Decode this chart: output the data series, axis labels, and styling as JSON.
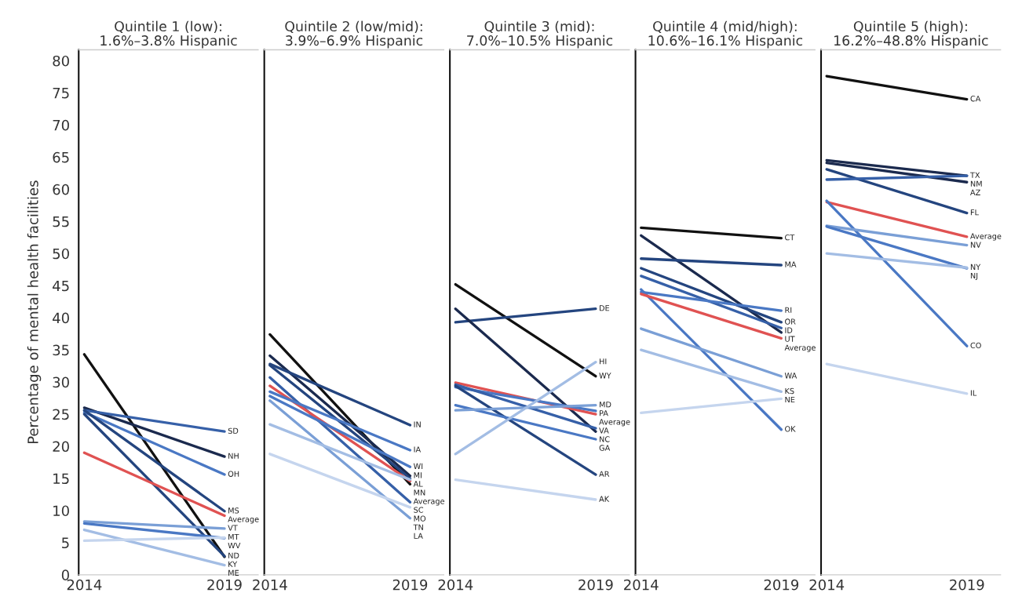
{
  "chart_data": [
    {
      "type": "line",
      "title": "Quintile 1 (low):\n1.6%–3.8% Hispanic",
      "ylabel": "Percentage of mental health facilities",
      "categories": [
        "2014",
        "2019"
      ],
      "ylim": [
        0,
        81.7
      ],
      "yticks": [
        0,
        5,
        10,
        15,
        20,
        25,
        30,
        35,
        40,
        45,
        50,
        55,
        60,
        65,
        70,
        75,
        80
      ],
      "series": [
        {
          "name": "KY",
          "color": "#111111",
          "values": [
            34.3,
            2.8
          ]
        },
        {
          "name": "NH",
          "color": "#1b2a4e",
          "values": [
            26.0,
            18.4
          ]
        },
        {
          "name": "SD",
          "color": "#3660a8",
          "values": [
            25.6,
            22.3
          ]
        },
        {
          "name": "OH",
          "color": "#4a78c4",
          "values": [
            25.3,
            15.6
          ]
        },
        {
          "name": "MS",
          "color": "#24457f",
          "values": [
            25.6,
            9.9
          ]
        },
        {
          "name": "ND",
          "color": "#24457f",
          "values": [
            25.0,
            2.9
          ]
        },
        {
          "name": "Average",
          "color": "#e05252",
          "values": [
            19.0,
            9.2
          ]
        },
        {
          "name": "VT",
          "color": "#7a9fd6",
          "values": [
            8.3,
            7.2
          ]
        },
        {
          "name": "WV",
          "color": "#4a78c4",
          "values": [
            8.0,
            5.7
          ]
        },
        {
          "name": "ME",
          "color": "#a3bde4",
          "values": [
            7.0,
            1.5
          ]
        },
        {
          "name": "MT",
          "color": "#c5d5ee",
          "values": [
            5.3,
            5.8
          ]
        }
      ]
    },
    {
      "type": "line",
      "title": "Quintile 2 (low/mid):\n3.9%–6.9% Hispanic",
      "categories": [
        "2014",
        "2019"
      ],
      "ylim": [
        0,
        81.7
      ],
      "tick_labels": "x",
      "series": [
        {
          "name": "SC",
          "color": "#111111",
          "values": [
            37.4,
            14.1
          ]
        },
        {
          "name": "MI",
          "color": "#1b2a4e",
          "values": [
            34.1,
            15.4
          ]
        },
        {
          "name": "IN",
          "color": "#24457f",
          "values": [
            32.8,
            23.3
          ]
        },
        {
          "name": "AL",
          "color": "#24457f",
          "values": [
            32.6,
            15.0
          ]
        },
        {
          "name": "MO",
          "color": "#3660a8",
          "values": [
            30.7,
            11.3
          ]
        },
        {
          "name": "Average",
          "color": "#e05252",
          "values": [
            29.4,
            14.6
          ]
        },
        {
          "name": "IA",
          "color": "#4a78c4",
          "values": [
            28.5,
            19.4
          ]
        },
        {
          "name": "WI",
          "color": "#4a78c4",
          "values": [
            27.8,
            16.8
          ]
        },
        {
          "name": "LA",
          "color": "#7a9fd6",
          "values": [
            27.1,
            8.8
          ]
        },
        {
          "name": "MN",
          "color": "#a3bde4",
          "values": [
            23.4,
            14.8
          ]
        },
        {
          "name": "TN",
          "color": "#c5d5ee",
          "values": [
            18.8,
            10.5
          ]
        }
      ]
    },
    {
      "type": "line",
      "title": "Quintile 3 (mid):\n7.0%–10.5% Hispanic",
      "categories": [
        "2014",
        "2019"
      ],
      "ylim": [
        0,
        81.7
      ],
      "tick_labels": "x",
      "series": [
        {
          "name": "WY",
          "color": "#111111",
          "values": [
            45.2,
            30.9
          ]
        },
        {
          "name": "DE",
          "color": "#24457f",
          "values": [
            39.3,
            41.4
          ]
        },
        {
          "name": "NC",
          "color": "#1b2a4e",
          "values": [
            41.4,
            22.3
          ]
        },
        {
          "name": "Average",
          "color": "#e05252",
          "values": [
            29.9,
            25.0
          ]
        },
        {
          "name": "PA",
          "color": "#4a78c4",
          "values": [
            29.2,
            25.5
          ]
        },
        {
          "name": "VA",
          "color": "#3660a8",
          "values": [
            29.6,
            22.8
          ]
        },
        {
          "name": "AR",
          "color": "#24457f",
          "values": [
            29.4,
            15.6
          ]
        },
        {
          "name": "GA",
          "color": "#4a78c4",
          "values": [
            26.4,
            21.1
          ]
        },
        {
          "name": "MD",
          "color": "#7a9fd6",
          "values": [
            25.6,
            26.4
          ]
        },
        {
          "name": "HI",
          "color": "#a3bde4",
          "values": [
            18.8,
            33.1
          ]
        },
        {
          "name": "AK",
          "color": "#c5d5ee",
          "values": [
            14.8,
            11.7
          ]
        }
      ]
    },
    {
      "type": "line",
      "title": "Quintile 4 (mid/high):\n10.6%–16.1% Hispanic",
      "categories": [
        "2014",
        "2019"
      ],
      "ylim": [
        0,
        81.7
      ],
      "tick_labels": "x",
      "series": [
        {
          "name": "CT",
          "color": "#111111",
          "values": [
            54.0,
            52.4
          ]
        },
        {
          "name": "UT",
          "color": "#1b2a4e",
          "values": [
            52.8,
            37.7
          ]
        },
        {
          "name": "MA",
          "color": "#24457f",
          "values": [
            49.2,
            48.2
          ]
        },
        {
          "name": "OR",
          "color": "#24457f",
          "values": [
            47.7,
            39.3
          ]
        },
        {
          "name": "ID",
          "color": "#3660a8",
          "values": [
            46.5,
            38.4
          ]
        },
        {
          "name": "RI",
          "color": "#4a78c4",
          "values": [
            44.0,
            41.1
          ]
        },
        {
          "name": "OK",
          "color": "#4a78c4",
          "values": [
            44.4,
            22.6
          ]
        },
        {
          "name": "Average",
          "color": "#e05252",
          "values": [
            43.7,
            36.8
          ]
        },
        {
          "name": "WA",
          "color": "#7a9fd6",
          "values": [
            38.3,
            30.9
          ]
        },
        {
          "name": "KS",
          "color": "#a3bde4",
          "values": [
            35.0,
            28.5
          ]
        },
        {
          "name": "NE",
          "color": "#c5d5ee",
          "values": [
            25.2,
            27.4
          ]
        }
      ]
    },
    {
      "type": "line",
      "title": "Quintile 5 (high):\n16.2%–48.8% Hispanic",
      "categories": [
        "2014",
        "2019"
      ],
      "ylim": [
        0,
        81.7
      ],
      "tick_labels": "x",
      "series": [
        {
          "name": "CA",
          "color": "#111111",
          "values": [
            77.6,
            74.0
          ]
        },
        {
          "name": "TX",
          "color": "#1b2a4e",
          "values": [
            64.5,
            62.1
          ]
        },
        {
          "name": "AZ",
          "color": "#1b2a4e",
          "values": [
            64.1,
            61.1
          ]
        },
        {
          "name": "FL",
          "color": "#24457f",
          "values": [
            63.1,
            56.3
          ]
        },
        {
          "name": "NM",
          "color": "#3660a8",
          "values": [
            61.5,
            62.1
          ]
        },
        {
          "name": "Average",
          "color": "#e05252",
          "values": [
            58.0,
            52.6
          ]
        },
        {
          "name": "CO",
          "color": "#4a78c4",
          "values": [
            58.2,
            35.6
          ]
        },
        {
          "name": "NV",
          "color": "#7a9fd6",
          "values": [
            54.3,
            51.3
          ]
        },
        {
          "name": "NJ",
          "color": "#4a78c4",
          "values": [
            54.2,
            47.7
          ]
        },
        {
          "name": "NY",
          "color": "#a3bde4",
          "values": [
            50.0,
            47.8
          ]
        },
        {
          "name": "IL",
          "color": "#c5d5ee",
          "values": [
            32.8,
            28.2
          ]
        }
      ]
    }
  ]
}
